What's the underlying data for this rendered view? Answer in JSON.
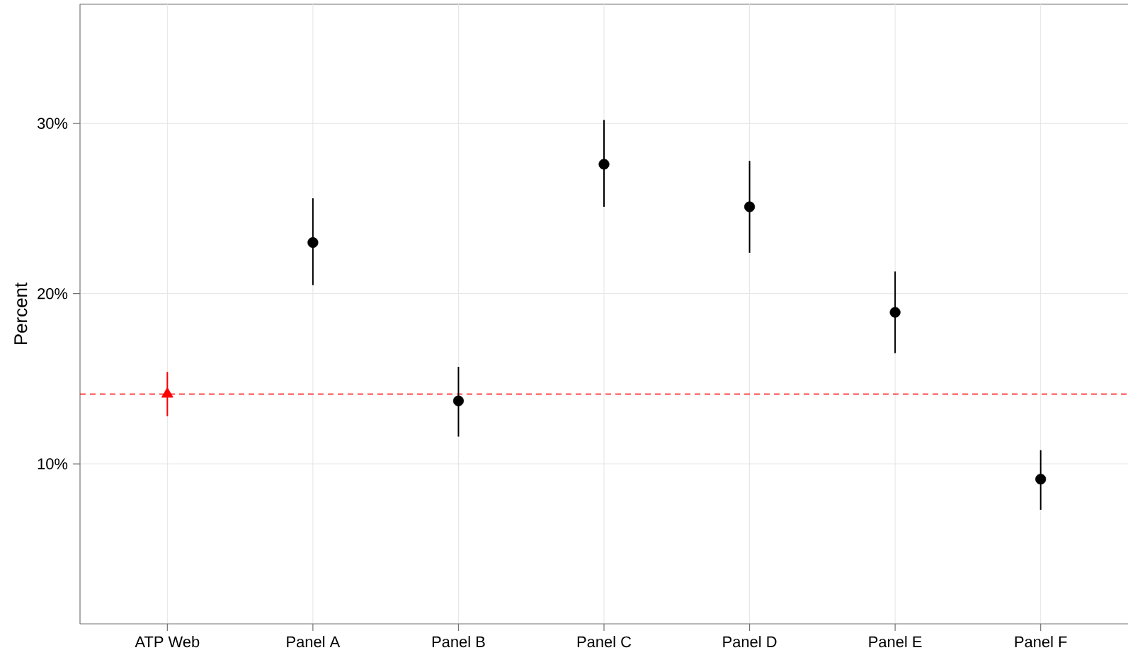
{
  "chart_data": {
    "type": "scatter",
    "ylabel": "Percent",
    "categories": [
      "ATP Web",
      "Panel A",
      "Panel B",
      "Panel C",
      "Panel D",
      "Panel E",
      "Panel F"
    ],
    "series": [
      {
        "color": "#ff0000",
        "marker": "triangle",
        "values": [
          14.1,
          null,
          null,
          null,
          null,
          null,
          null
        ],
        "errors": [
          [
            12.8,
            15.4
          ],
          null,
          null,
          null,
          null,
          null,
          null
        ]
      },
      {
        "color": "#000000",
        "marker": "circle",
        "values": [
          null,
          23.0,
          13.7,
          27.6,
          25.1,
          18.9,
          9.1
        ],
        "errors": [
          null,
          [
            20.5,
            25.6
          ],
          [
            11.6,
            15.7
          ],
          [
            25.1,
            30.2
          ],
          [
            22.4,
            27.8
          ],
          [
            16.5,
            21.3
          ],
          [
            7.3,
            10.8
          ]
        ]
      }
    ],
    "ylim": [
      0.6,
      37
    ],
    "yticks": [
      {
        "value": 10,
        "label": "10%"
      },
      {
        "value": 20,
        "label": "20%"
      },
      {
        "value": 30,
        "label": "30%"
      }
    ],
    "grid": true,
    "ref_lines": [
      {
        "axis": "y",
        "value": 14.1,
        "color": "#ff0000",
        "line_style": "dashed"
      }
    ]
  }
}
